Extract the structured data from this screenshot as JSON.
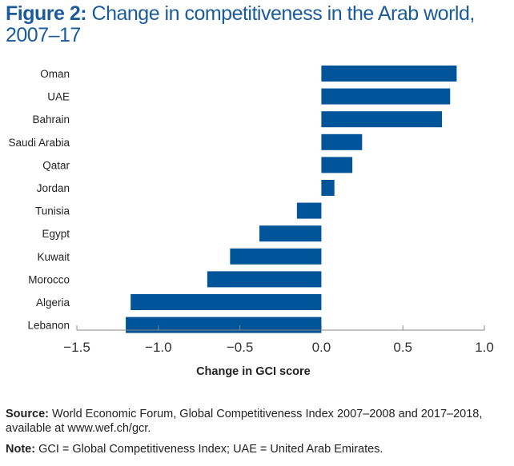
{
  "figure_label": "Figure 2:",
  "chart_data": {
    "type": "bar",
    "orientation": "horizontal",
    "title": "Change in competitiveness in the Arab world, 2007–17",
    "xlabel": "Change in GCI score",
    "ylabel": "",
    "xlim": [
      -1.5,
      1.0
    ],
    "xticks": [
      -1.5,
      -1.0,
      -0.5,
      0.0,
      0.5,
      1.0
    ],
    "xtick_labels": [
      "−1.5",
      "−1.0",
      "−0.5",
      "0.0",
      "0.5",
      "1.0"
    ],
    "grid": false,
    "categories": [
      "Oman",
      "UAE",
      "Bahrain",
      "Saudi Arabia",
      "Qatar",
      "Jordan",
      "Tunisia",
      "Egypt",
      "Kuwait",
      "Morocco",
      "Algeria",
      "Lebanon"
    ],
    "values": [
      0.83,
      0.79,
      0.74,
      0.25,
      0.19,
      0.08,
      -0.15,
      -0.38,
      -0.56,
      -0.7,
      -1.17,
      -1.2
    ],
    "bar_color": "#00549a"
  },
  "footer": {
    "source_label": "Source:",
    "source_text": " World Economic Forum, Global Competitiveness Index 2007–2008 and 2017–2018, available at www.wef.ch/gcr.",
    "note_label": "Note:",
    "note_text": " GCI = Global Competitiveness Index; UAE = United Arab Emirates."
  }
}
